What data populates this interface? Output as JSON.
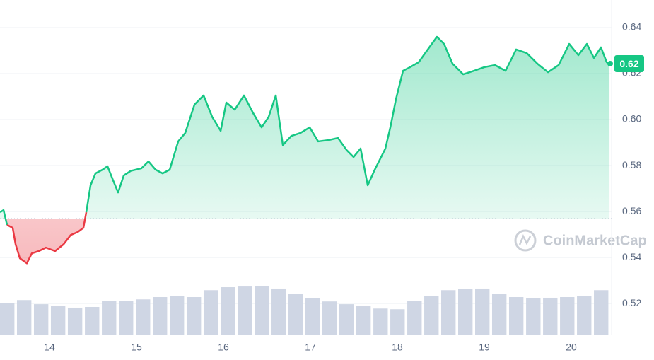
{
  "chart_data": {
    "type": "line",
    "x": [
      13.431,
      13.472,
      13.512,
      13.577,
      13.61,
      13.659,
      13.74,
      13.797,
      13.878,
      13.959,
      14.065,
      14.163,
      14.244,
      14.325,
      14.39,
      14.423,
      14.472,
      14.529,
      14.61,
      14.667,
      14.732,
      14.789,
      14.854,
      14.935,
      15.057,
      15.138,
      15.22,
      15.301,
      15.382,
      15.48,
      15.561,
      15.667,
      15.772,
      15.87,
      15.968,
      16.033,
      16.13,
      16.236,
      16.342,
      16.439,
      16.52,
      16.602,
      16.683,
      16.781,
      16.886,
      16.992,
      17.089,
      17.211,
      17.317,
      17.415,
      17.496,
      17.577,
      17.659,
      17.74,
      17.862,
      17.919,
      17.984,
      18.065,
      18.146,
      18.244,
      18.35,
      18.455,
      18.537,
      18.634,
      18.756,
      18.878,
      19.0,
      19.122,
      19.244,
      19.366,
      19.488,
      19.61,
      19.732,
      19.854,
      19.976,
      20.081,
      20.179,
      20.26,
      20.341,
      20.407,
      20.439
    ],
    "values": [
      0.5597,
      0.5606,
      0.5542,
      0.5529,
      0.5458,
      0.5397,
      0.5375,
      0.5418,
      0.5428,
      0.5443,
      0.5428,
      0.5458,
      0.5498,
      0.5511,
      0.5529,
      0.5597,
      0.5714,
      0.5766,
      0.5782,
      0.5797,
      0.5735,
      0.5683,
      0.5757,
      0.5777,
      0.5788,
      0.5818,
      0.5782,
      0.5766,
      0.5782,
      0.5905,
      0.5942,
      0.6065,
      0.6105,
      0.6012,
      0.5951,
      0.6074,
      0.6043,
      0.6105,
      0.6028,
      0.5966,
      0.6012,
      0.6105,
      0.5889,
      0.5929,
      0.5942,
      0.5966,
      0.5905,
      0.5911,
      0.592,
      0.5868,
      0.5837,
      0.5874,
      0.5714,
      0.5782,
      0.5874,
      0.5966,
      0.6089,
      0.6212,
      0.6228,
      0.6249,
      0.6305,
      0.636,
      0.6329,
      0.6243,
      0.6197,
      0.6212,
      0.6228,
      0.6237,
      0.6212,
      0.6305,
      0.6289,
      0.6243,
      0.6206,
      0.6237,
      0.6329,
      0.628,
      0.6329,
      0.6268,
      0.6314,
      0.6249,
      0.6243
    ],
    "up_color": "#16c784",
    "down_color": "#ea3943",
    "baseline": 0.5569,
    "current_price": {
      "value": 0.6243,
      "label": "0.62"
    },
    "volume": {
      "color": "#cfd6e4",
      "x": [
        13.431,
        13.626,
        13.821,
        14.016,
        14.211,
        14.407,
        14.602,
        14.797,
        14.992,
        15.187,
        15.382,
        15.577,
        15.772,
        15.968,
        16.163,
        16.358,
        16.553,
        16.748,
        16.943,
        17.138,
        17.333,
        17.528,
        17.724,
        17.919,
        18.114,
        18.309,
        18.504,
        18.699,
        18.894,
        19.089,
        19.284,
        19.48,
        19.675,
        19.87,
        20.065,
        20.26
      ],
      "values": [
        0.5203,
        0.5215,
        0.5197,
        0.5188,
        0.5182,
        0.5185,
        0.5212,
        0.5212,
        0.5218,
        0.5228,
        0.5234,
        0.5228,
        0.5258,
        0.5271,
        0.5274,
        0.5277,
        0.5265,
        0.5243,
        0.5222,
        0.5209,
        0.5197,
        0.5188,
        0.5178,
        0.5175,
        0.5212,
        0.5234,
        0.5258,
        0.5262,
        0.5265,
        0.5243,
        0.5228,
        0.5222,
        0.5225,
        0.5228,
        0.5234,
        0.5258
      ]
    },
    "xlim": [
      13.431,
      20.463
    ],
    "xticks": [
      14,
      15,
      16,
      17,
      18,
      19,
      20
    ],
    "ylim": [
      0.5065,
      0.652
    ],
    "yticks": [
      0.52,
      0.54,
      0.56,
      0.58,
      {
        "value": 0.6,
        "label": "0.60"
      },
      0.62,
      0.64
    ],
    "grid": true,
    "watermark": "CoinMarketCap"
  }
}
